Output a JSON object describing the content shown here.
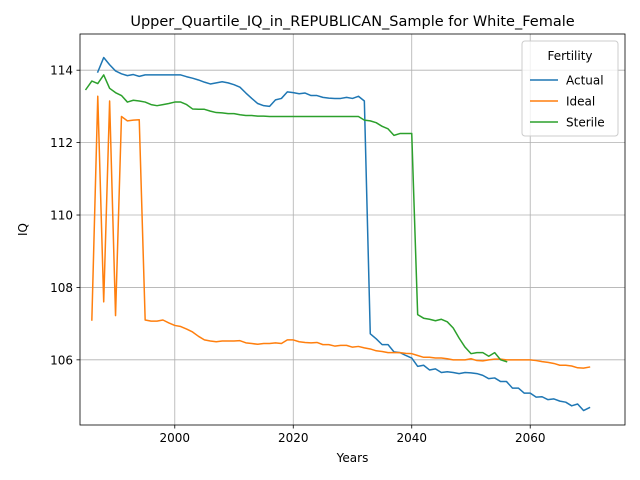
{
  "chart_data": {
    "type": "line",
    "title": "Upper_Quartile_IQ_in_REPUBLICAN_Sample for White_Female",
    "xlabel": "Years",
    "ylabel": "IQ",
    "xlim": [
      1984,
      2076
    ],
    "ylim": [
      104.2,
      115.0
    ],
    "xticks": [
      2000,
      2020,
      2040,
      2060
    ],
    "yticks": [
      106,
      108,
      110,
      112,
      114
    ],
    "grid": true,
    "legend": {
      "title": "Fertility",
      "placement": "top-right"
    },
    "series": [
      {
        "name": "Actual",
        "color": "#1f77b4",
        "points": [
          [
            1987,
            113.95
          ],
          [
            1988,
            114.35
          ],
          [
            1989,
            114.15
          ],
          [
            1990,
            113.98
          ],
          [
            1991,
            113.9
          ],
          [
            1992,
            113.85
          ],
          [
            1993,
            113.88
          ],
          [
            1994,
            113.83
          ],
          [
            1995,
            113.87
          ],
          [
            1996,
            113.87
          ],
          [
            1997,
            113.87
          ],
          [
            1998,
            113.87
          ],
          [
            1999,
            113.87
          ],
          [
            2000,
            113.87
          ],
          [
            2001,
            113.87
          ],
          [
            2002,
            113.82
          ],
          [
            2003,
            113.78
          ],
          [
            2004,
            113.73
          ],
          [
            2005,
            113.67
          ],
          [
            2006,
            113.62
          ],
          [
            2007,
            113.65
          ],
          [
            2008,
            113.68
          ],
          [
            2009,
            113.65
          ],
          [
            2010,
            113.6
          ],
          [
            2011,
            113.53
          ],
          [
            2012,
            113.37
          ],
          [
            2013,
            113.22
          ],
          [
            2014,
            113.08
          ],
          [
            2015,
            113.02
          ],
          [
            2016,
            113.0
          ],
          [
            2017,
            113.18
          ],
          [
            2018,
            113.22
          ],
          [
            2019,
            113.4
          ],
          [
            2020,
            113.38
          ],
          [
            2021,
            113.35
          ],
          [
            2022,
            113.37
          ],
          [
            2023,
            113.3
          ],
          [
            2024,
            113.3
          ],
          [
            2025,
            113.25
          ],
          [
            2026,
            113.23
          ],
          [
            2027,
            113.22
          ],
          [
            2028,
            113.22
          ],
          [
            2029,
            113.25
          ],
          [
            2030,
            113.22
          ],
          [
            2031,
            113.28
          ],
          [
            2032,
            113.15
          ],
          [
            2033,
            106.72
          ],
          [
            2034,
            106.58
          ],
          [
            2035,
            106.42
          ],
          [
            2036,
            106.42
          ],
          [
            2037,
            106.22
          ],
          [
            2038,
            106.2
          ],
          [
            2039,
            106.12
          ],
          [
            2040,
            106.05
          ],
          [
            2041,
            105.82
          ],
          [
            2042,
            105.85
          ],
          [
            2043,
            105.72
          ],
          [
            2044,
            105.75
          ],
          [
            2045,
            105.65
          ],
          [
            2046,
            105.67
          ],
          [
            2047,
            105.65
          ],
          [
            2048,
            105.62
          ],
          [
            2049,
            105.65
          ],
          [
            2050,
            105.64
          ],
          [
            2051,
            105.62
          ],
          [
            2052,
            105.57
          ],
          [
            2053,
            105.48
          ],
          [
            2054,
            105.5
          ],
          [
            2055,
            105.4
          ],
          [
            2056,
            105.4
          ],
          [
            2057,
            105.22
          ],
          [
            2058,
            105.22
          ],
          [
            2059,
            105.08
          ],
          [
            2060,
            105.08
          ],
          [
            2061,
            104.97
          ],
          [
            2062,
            104.98
          ],
          [
            2063,
            104.9
          ],
          [
            2064,
            104.92
          ],
          [
            2065,
            104.86
          ],
          [
            2066,
            104.83
          ],
          [
            2067,
            104.73
          ],
          [
            2068,
            104.78
          ],
          [
            2069,
            104.6
          ],
          [
            2070,
            104.68
          ]
        ]
      },
      {
        "name": "Ideal",
        "color": "#ff7f0e",
        "points": [
          [
            1986,
            107.1
          ],
          [
            1987,
            113.28
          ],
          [
            1988,
            107.6
          ],
          [
            1989,
            113.15
          ],
          [
            1990,
            107.22
          ],
          [
            1991,
            112.72
          ],
          [
            1992,
            112.6
          ],
          [
            1993,
            112.62
          ],
          [
            1994,
            112.63
          ],
          [
            1995,
            107.1
          ],
          [
            1996,
            107.07
          ],
          [
            1997,
            107.07
          ],
          [
            1998,
            107.1
          ],
          [
            1999,
            107.02
          ],
          [
            2000,
            106.95
          ],
          [
            2001,
            106.92
          ],
          [
            2002,
            106.85
          ],
          [
            2003,
            106.77
          ],
          [
            2004,
            106.65
          ],
          [
            2005,
            106.55
          ],
          [
            2006,
            106.52
          ],
          [
            2007,
            106.5
          ],
          [
            2008,
            106.52
          ],
          [
            2009,
            106.52
          ],
          [
            2010,
            106.52
          ],
          [
            2011,
            106.53
          ],
          [
            2012,
            106.47
          ],
          [
            2013,
            106.45
          ],
          [
            2014,
            106.43
          ],
          [
            2015,
            106.45
          ],
          [
            2016,
            106.45
          ],
          [
            2017,
            106.47
          ],
          [
            2018,
            106.45
          ],
          [
            2019,
            106.55
          ],
          [
            2020,
            106.55
          ],
          [
            2021,
            106.5
          ],
          [
            2022,
            106.48
          ],
          [
            2023,
            106.47
          ],
          [
            2024,
            106.48
          ],
          [
            2025,
            106.42
          ],
          [
            2026,
            106.42
          ],
          [
            2027,
            106.38
          ],
          [
            2028,
            106.4
          ],
          [
            2029,
            106.4
          ],
          [
            2030,
            106.35
          ],
          [
            2031,
            106.37
          ],
          [
            2032,
            106.33
          ],
          [
            2033,
            106.3
          ],
          [
            2034,
            106.25
          ],
          [
            2035,
            106.23
          ],
          [
            2036,
            106.2
          ],
          [
            2037,
            106.2
          ],
          [
            2038,
            106.2
          ],
          [
            2039,
            106.18
          ],
          [
            2040,
            106.17
          ],
          [
            2041,
            106.12
          ],
          [
            2042,
            106.07
          ],
          [
            2043,
            106.07
          ],
          [
            2044,
            106.05
          ],
          [
            2045,
            106.05
          ],
          [
            2046,
            106.03
          ],
          [
            2047,
            106.0
          ],
          [
            2048,
            106.0
          ],
          [
            2049,
            106.0
          ],
          [
            2050,
            106.03
          ],
          [
            2051,
            105.98
          ],
          [
            2052,
            105.97
          ],
          [
            2053,
            106.0
          ],
          [
            2054,
            106.02
          ],
          [
            2055,
            106.02
          ],
          [
            2056,
            106.0
          ],
          [
            2057,
            106.0
          ],
          [
            2058,
            106.0
          ],
          [
            2059,
            106.0
          ],
          [
            2060,
            106.0
          ],
          [
            2061,
            105.98
          ],
          [
            2062,
            105.95
          ],
          [
            2063,
            105.93
          ],
          [
            2064,
            105.9
          ],
          [
            2065,
            105.85
          ],
          [
            2066,
            105.85
          ],
          [
            2067,
            105.83
          ],
          [
            2068,
            105.78
          ],
          [
            2069,
            105.77
          ],
          [
            2070,
            105.8
          ]
        ]
      },
      {
        "name": "Sterile",
        "color": "#2ca02c",
        "points": [
          [
            1985,
            113.47
          ],
          [
            1986,
            113.7
          ],
          [
            1987,
            113.63
          ],
          [
            1988,
            113.87
          ],
          [
            1989,
            113.5
          ],
          [
            1990,
            113.38
          ],
          [
            1991,
            113.3
          ],
          [
            1992,
            113.12
          ],
          [
            1993,
            113.17
          ],
          [
            1994,
            113.15
          ],
          [
            1995,
            113.12
          ],
          [
            1996,
            113.05
          ],
          [
            1997,
            113.02
          ],
          [
            1998,
            113.05
          ],
          [
            1999,
            113.08
          ],
          [
            2000,
            113.12
          ],
          [
            2001,
            113.12
          ],
          [
            2002,
            113.05
          ],
          [
            2003,
            112.93
          ],
          [
            2004,
            112.92
          ],
          [
            2005,
            112.92
          ],
          [
            2006,
            112.87
          ],
          [
            2007,
            112.83
          ],
          [
            2008,
            112.82
          ],
          [
            2009,
            112.8
          ],
          [
            2010,
            112.8
          ],
          [
            2011,
            112.77
          ],
          [
            2012,
            112.75
          ],
          [
            2013,
            112.75
          ],
          [
            2014,
            112.73
          ],
          [
            2015,
            112.73
          ],
          [
            2016,
            112.72
          ],
          [
            2017,
            112.72
          ],
          [
            2018,
            112.72
          ],
          [
            2019,
            112.72
          ],
          [
            2020,
            112.72
          ],
          [
            2021,
            112.72
          ],
          [
            2022,
            112.72
          ],
          [
            2023,
            112.72
          ],
          [
            2024,
            112.72
          ],
          [
            2025,
            112.72
          ],
          [
            2026,
            112.72
          ],
          [
            2027,
            112.72
          ],
          [
            2028,
            112.72
          ],
          [
            2029,
            112.72
          ],
          [
            2030,
            112.72
          ],
          [
            2031,
            112.72
          ],
          [
            2032,
            112.62
          ],
          [
            2033,
            112.6
          ],
          [
            2034,
            112.55
          ],
          [
            2035,
            112.45
          ],
          [
            2036,
            112.38
          ],
          [
            2037,
            112.2
          ],
          [
            2038,
            112.25
          ],
          [
            2039,
            112.25
          ],
          [
            2040,
            112.25
          ],
          [
            2041,
            107.25
          ],
          [
            2042,
            107.15
          ],
          [
            2043,
            107.12
          ],
          [
            2044,
            107.08
          ],
          [
            2045,
            107.12
          ],
          [
            2046,
            107.05
          ],
          [
            2047,
            106.88
          ],
          [
            2048,
            106.6
          ],
          [
            2049,
            106.35
          ],
          [
            2050,
            106.17
          ],
          [
            2051,
            106.2
          ],
          [
            2052,
            106.2
          ],
          [
            2053,
            106.1
          ],
          [
            2054,
            106.2
          ],
          [
            2055,
            106.0
          ],
          [
            2056,
            105.95
          ]
        ]
      }
    ]
  }
}
